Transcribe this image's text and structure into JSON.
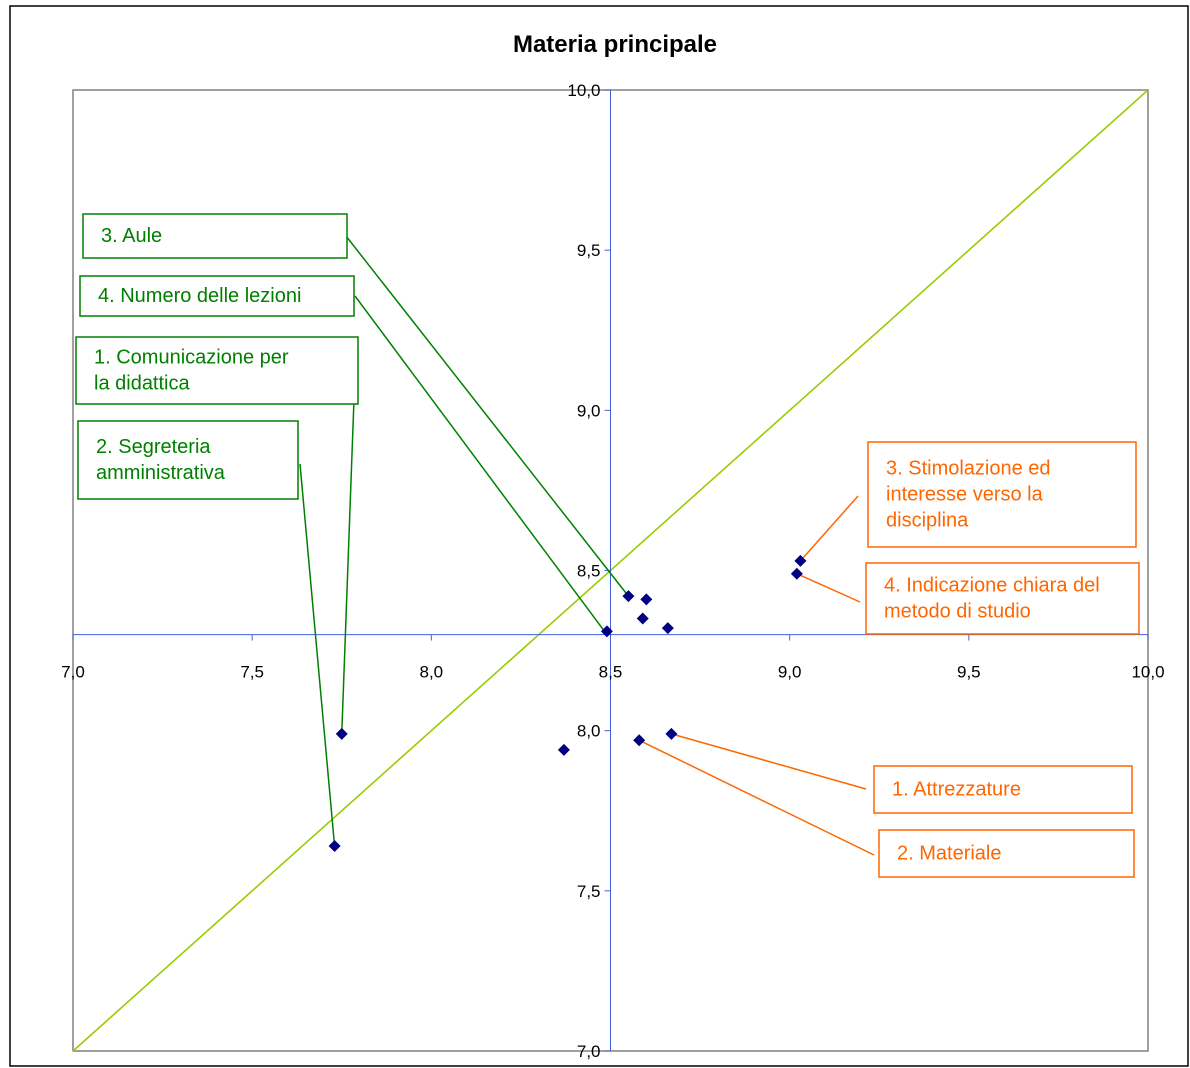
{
  "chart_data": {
    "type": "scatter",
    "title": "Materia principale",
    "xlabel": "",
    "ylabel": "",
    "xlim": [
      7.0,
      10.0
    ],
    "ylim": [
      7.0,
      10.0
    ],
    "axis_cross": {
      "x": 8.5,
      "y": 8.3
    },
    "x_ticks": [
      "7,0",
      "7,5",
      "8,0",
      "8,5",
      "9,0",
      "9,5",
      "10,0"
    ],
    "y_ticks": [
      "10,0",
      "9,5",
      "9,0",
      "8,5",
      "8,0",
      "7,5",
      "7,0"
    ],
    "x_tick_values": [
      7.0,
      7.5,
      8.0,
      8.5,
      9.0,
      9.5,
      10.0
    ],
    "y_tick_values": [
      10.0,
      9.5,
      9.0,
      8.5,
      8.0,
      7.5,
      7.0
    ],
    "grid": false,
    "reference_line": {
      "from": [
        7.0,
        7.0
      ],
      "to": [
        10.0,
        10.0
      ],
      "color": "#99cc00"
    },
    "marker_color": "#000080",
    "points": [
      {
        "x": 7.75,
        "y": 7.99
      },
      {
        "x": 7.73,
        "y": 7.64
      },
      {
        "x": 8.37,
        "y": 7.94
      },
      {
        "x": 8.58,
        "y": 7.97
      },
      {
        "x": 8.67,
        "y": 7.99
      },
      {
        "x": 8.49,
        "y": 8.31
      },
      {
        "x": 8.55,
        "y": 8.42
      },
      {
        "x": 8.59,
        "y": 8.35
      },
      {
        "x": 8.6,
        "y": 8.41
      },
      {
        "x": 8.66,
        "y": 8.32
      },
      {
        "x": 9.02,
        "y": 8.49
      },
      {
        "x": 9.03,
        "y": 8.53
      }
    ],
    "annotations": [
      {
        "id": "aule",
        "lines": [
          "3. Aule"
        ],
        "color": "#008000",
        "target": [
          8.55,
          8.42
        ]
      },
      {
        "id": "numero",
        "lines": [
          "4. Numero delle lezioni"
        ],
        "color": "#008000",
        "target": [
          8.49,
          8.3
        ]
      },
      {
        "id": "comunicazione",
        "lines": [
          "1. Comunicazione per",
          "la didattica"
        ],
        "color": "#008000",
        "target": [
          7.75,
          7.99
        ]
      },
      {
        "id": "segreteria",
        "lines": [
          "2. Segreteria",
          "amministrativa"
        ],
        "color": "#008000",
        "target": [
          7.73,
          7.64
        ]
      },
      {
        "id": "stimolazione",
        "lines": [
          "3. Stimolazione ed",
          "interesse verso la",
          "disciplina"
        ],
        "color": "#ff6600",
        "target": [
          9.03,
          8.53
        ]
      },
      {
        "id": "indicazione",
        "lines": [
          "4. Indicazione chiara del",
          "metodo di studio"
        ],
        "color": "#ff6600",
        "target": [
          9.02,
          8.49
        ]
      },
      {
        "id": "attrezzature",
        "lines": [
          "1. Attrezzature"
        ],
        "color": "#ff6600",
        "target": [
          8.67,
          7.99
        ]
      },
      {
        "id": "materiale",
        "lines": [
          "2. Materiale"
        ],
        "color": "#ff6600",
        "target": [
          8.58,
          7.97
        ]
      }
    ]
  }
}
